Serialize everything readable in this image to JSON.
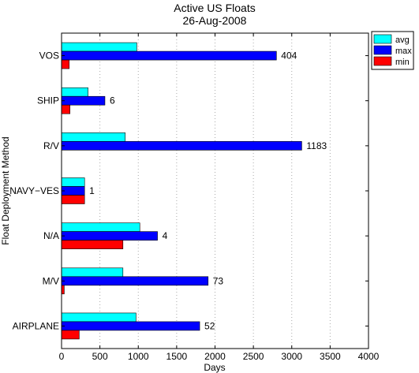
{
  "chart_data": {
    "type": "bar",
    "orientation": "horizontal",
    "title": [
      "Active US Floats",
      "26-Aug-2008"
    ],
    "xlabel": "Days",
    "ylabel": "Float Deployment Method",
    "xlim": [
      0,
      4000
    ],
    "xticks": [
      0,
      500,
      1000,
      1500,
      2000,
      2500,
      3000,
      3500,
      4000
    ],
    "grid": "vertical dotted",
    "legend_position": "top-right",
    "categories": [
      "VOS",
      "SHIP",
      "R/V",
      "NAVY−VES",
      "N/A",
      "M/V",
      "AIRPLANE"
    ],
    "series": [
      {
        "name": "avg",
        "color": "#00ffff",
        "values": [
          980,
          345,
          830,
          300,
          1020,
          800,
          970
        ]
      },
      {
        "name": "max",
        "color": "#0000ff",
        "values": [
          2800,
          565,
          3130,
          300,
          1250,
          1910,
          1800
        ]
      },
      {
        "name": "min",
        "color": "#ff0000",
        "values": [
          100,
          110,
          0,
          300,
          800,
          35,
          230
        ]
      }
    ],
    "annotations": [
      "404",
      "6",
      "1183",
      "1",
      "4",
      "73",
      "52"
    ]
  }
}
